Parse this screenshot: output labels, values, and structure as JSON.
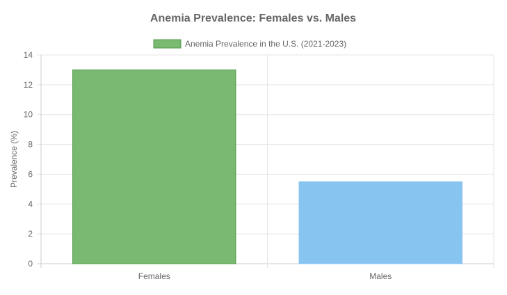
{
  "chart_data": {
    "type": "bar",
    "title": "Anemia Prevalence: Females vs. Males",
    "categories": [
      "Females",
      "Males"
    ],
    "series": [
      {
        "name": "Anemia Prevalence in the U.S. (2021-2023)",
        "values": [
          13.0,
          5.5
        ]
      }
    ],
    "bar_colors": [
      "#7ab972",
      "#87c4f0"
    ],
    "bar_border_colors": [
      "#4f9a47",
      "#87c4f0"
    ],
    "legend_color": "#7ab972",
    "legend_border_color": "#4f9a47",
    "xlabel": "",
    "ylabel": "Prevalence (%)",
    "ylim": [
      0,
      14
    ],
    "yticks": [
      "0",
      "2",
      "4",
      "6",
      "8",
      "10",
      "12",
      "14"
    ],
    "grid": true,
    "legend_position": "top"
  }
}
